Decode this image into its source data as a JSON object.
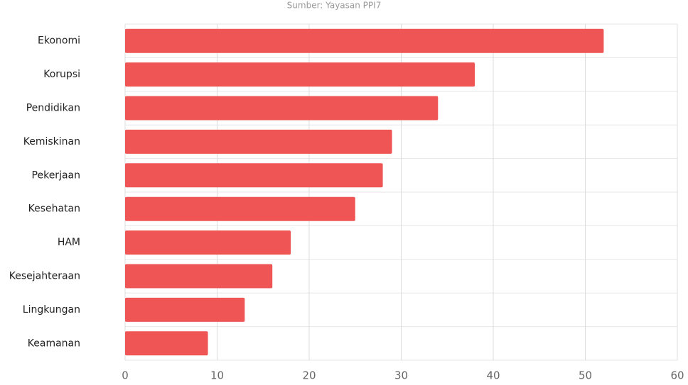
{
  "chart_data": {
    "type": "bar",
    "subtitle": "Sumber: Yayasan PPI7",
    "categories": [
      "Ekonomi",
      "Korupsi",
      "Pendidikan",
      "Kemiskinan",
      "Pekerjaan",
      "Kesehatan",
      "HAM",
      "Kesejahteraan",
      "Lingkungan",
      "Keamanan"
    ],
    "values": [
      52,
      38,
      34,
      29,
      28,
      25,
      18,
      16,
      13,
      9
    ],
    "color": "#ef5555",
    "xlim": [
      0,
      60
    ],
    "xticks": [
      0,
      10,
      20,
      30,
      40,
      50,
      60
    ],
    "grid": true
  }
}
